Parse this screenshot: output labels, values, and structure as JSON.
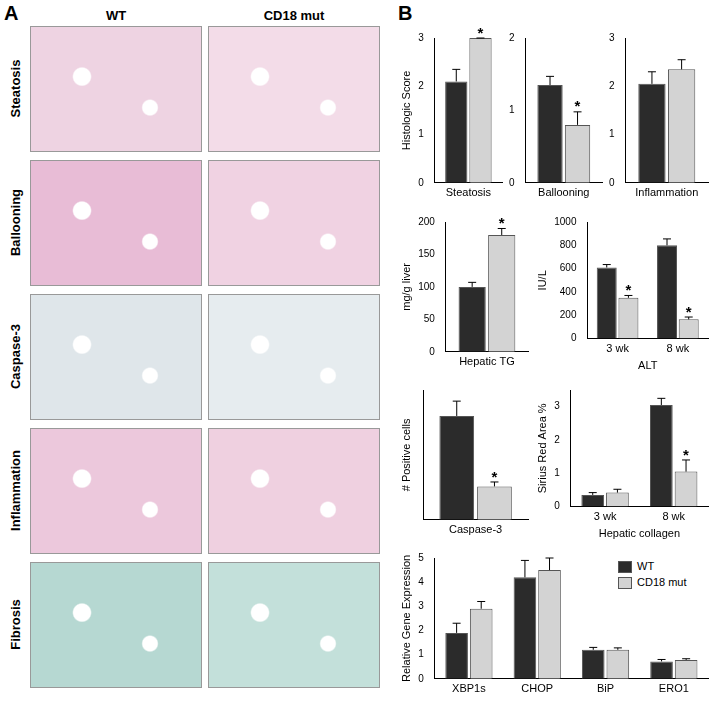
{
  "panels": {
    "A": {
      "label": "A",
      "columns": [
        "WT",
        "CD18 mut"
      ],
      "rows": [
        "Steatosis",
        "Ballooning",
        "Caspase-3",
        "Inflammation",
        "Fibrosis"
      ]
    },
    "B": {
      "label": "B"
    }
  },
  "chart_data": [
    {
      "type": "bar",
      "y_label": "Histologic Score",
      "categories": [
        "Steatosis"
      ],
      "ylim": [
        0,
        3
      ],
      "yticks": [
        0,
        1,
        2,
        3
      ],
      "grid": false,
      "series": [
        {
          "color": "#2b2b2b",
          "values": [
            2.1
          ],
          "errors": [
            0.25
          ],
          "annotations": [
            null
          ]
        },
        {
          "color": "#d3d3d3",
          "values": [
            3.0
          ],
          "errors": [
            0
          ],
          "annotations": [
            "*"
          ]
        }
      ]
    },
    {
      "type": "bar",
      "categories": [
        "Ballooning"
      ],
      "ylim": [
        0,
        2
      ],
      "yticks": [
        0,
        1,
        2
      ],
      "grid": false,
      "series": [
        {
          "color": "#2b2b2b",
          "values": [
            1.35
          ],
          "errors": [
            0.12
          ],
          "annotations": [
            null
          ]
        },
        {
          "color": "#d3d3d3",
          "values": [
            0.8
          ],
          "errors": [
            0.18
          ],
          "annotations": [
            "*"
          ]
        }
      ]
    },
    {
      "type": "bar",
      "categories": [
        "Inflammation"
      ],
      "ylim": [
        0,
        3
      ],
      "yticks": [
        0,
        1,
        2,
        3
      ],
      "grid": false,
      "series": [
        {
          "color": "#2b2b2b",
          "values": [
            2.05
          ],
          "errors": [
            0.25
          ],
          "annotations": [
            null
          ]
        },
        {
          "color": "#d3d3d3",
          "values": [
            2.35
          ],
          "errors": [
            0.2
          ],
          "annotations": [
            null
          ]
        }
      ]
    },
    {
      "type": "bar",
      "y_label": "mg/g liver",
      "categories": [
        "Hepatic TG"
      ],
      "ylim": [
        0,
        200
      ],
      "yticks": [
        0,
        50,
        100,
        150,
        200
      ],
      "grid": false,
      "series": [
        {
          "color": "#2b2b2b",
          "values": [
            100
          ],
          "errors": [
            7
          ],
          "annotations": [
            null
          ]
        },
        {
          "color": "#d3d3d3",
          "values": [
            180
          ],
          "errors": [
            10
          ],
          "annotations": [
            "*"
          ]
        }
      ]
    },
    {
      "type": "bar",
      "y_label": "IU/L",
      "x_label": "ALT",
      "categories": [
        "3 wk",
        "8 wk"
      ],
      "ylim": [
        0,
        1000
      ],
      "yticks": [
        0,
        200,
        400,
        600,
        800,
        1000
      ],
      "grid": false,
      "series": [
        {
          "color": "#2b2b2b",
          "values": [
            610,
            800
          ],
          "errors": [
            25,
            55
          ],
          "annotations": [
            null,
            null
          ]
        },
        {
          "color": "#d3d3d3",
          "values": [
            350,
            165
          ],
          "errors": [
            20,
            20
          ],
          "annotations": [
            "*",
            "*"
          ]
        }
      ]
    },
    {
      "type": "bar",
      "y_label": "# Positive cells",
      "categories": [
        "Caspase-3"
      ],
      "ylim": [
        0,
        3.5
      ],
      "tick_labels": "x",
      "grid": false,
      "series": [
        {
          "color": "#2b2b2b",
          "values": [
            2.8
          ],
          "errors": [
            0.4
          ],
          "annotations": [
            null
          ]
        },
        {
          "color": "#d3d3d3",
          "values": [
            0.9
          ],
          "errors": [
            0.12
          ],
          "annotations": [
            "*"
          ]
        }
      ]
    },
    {
      "type": "bar",
      "y_label": "Sirius Red Area %",
      "x_label": "Hepatic collagen",
      "categories": [
        "3 wk",
        "8 wk"
      ],
      "ylim": [
        0,
        3.5
      ],
      "yticks": [
        0,
        1,
        2,
        3
      ],
      "grid": false,
      "series": [
        {
          "color": "#2b2b2b",
          "values": [
            0.35,
            3.05
          ],
          "errors": [
            0.07,
            0.2
          ],
          "annotations": [
            null,
            null
          ]
        },
        {
          "color": "#d3d3d3",
          "values": [
            0.42,
            1.05
          ],
          "errors": [
            0.1,
            0.35
          ],
          "annotations": [
            null,
            "*"
          ]
        }
      ]
    },
    {
      "type": "bar",
      "y_label": "Relative Gene Expression",
      "categories": [
        "XBP1s",
        "CHOP",
        "BiP",
        "ERO1"
      ],
      "ylim": [
        0,
        5
      ],
      "yticks": [
        0,
        1,
        2,
        3,
        4,
        5
      ],
      "grid": false,
      "legend": "upper right",
      "series": [
        {
          "name": "WT",
          "color": "#2b2b2b",
          "values": [
            1.9,
            4.2,
            1.2,
            0.72
          ],
          "errors": [
            0.4,
            0.7,
            0.1,
            0.08
          ],
          "annotations": [
            null,
            null,
            null,
            null
          ]
        },
        {
          "name": "CD18 mut",
          "color": "#d3d3d3",
          "values": [
            2.9,
            4.5,
            1.2,
            0.78
          ],
          "errors": [
            0.3,
            0.5,
            0.08,
            0.05
          ],
          "annotations": [
            null,
            null,
            null,
            null
          ]
        }
      ]
    }
  ]
}
